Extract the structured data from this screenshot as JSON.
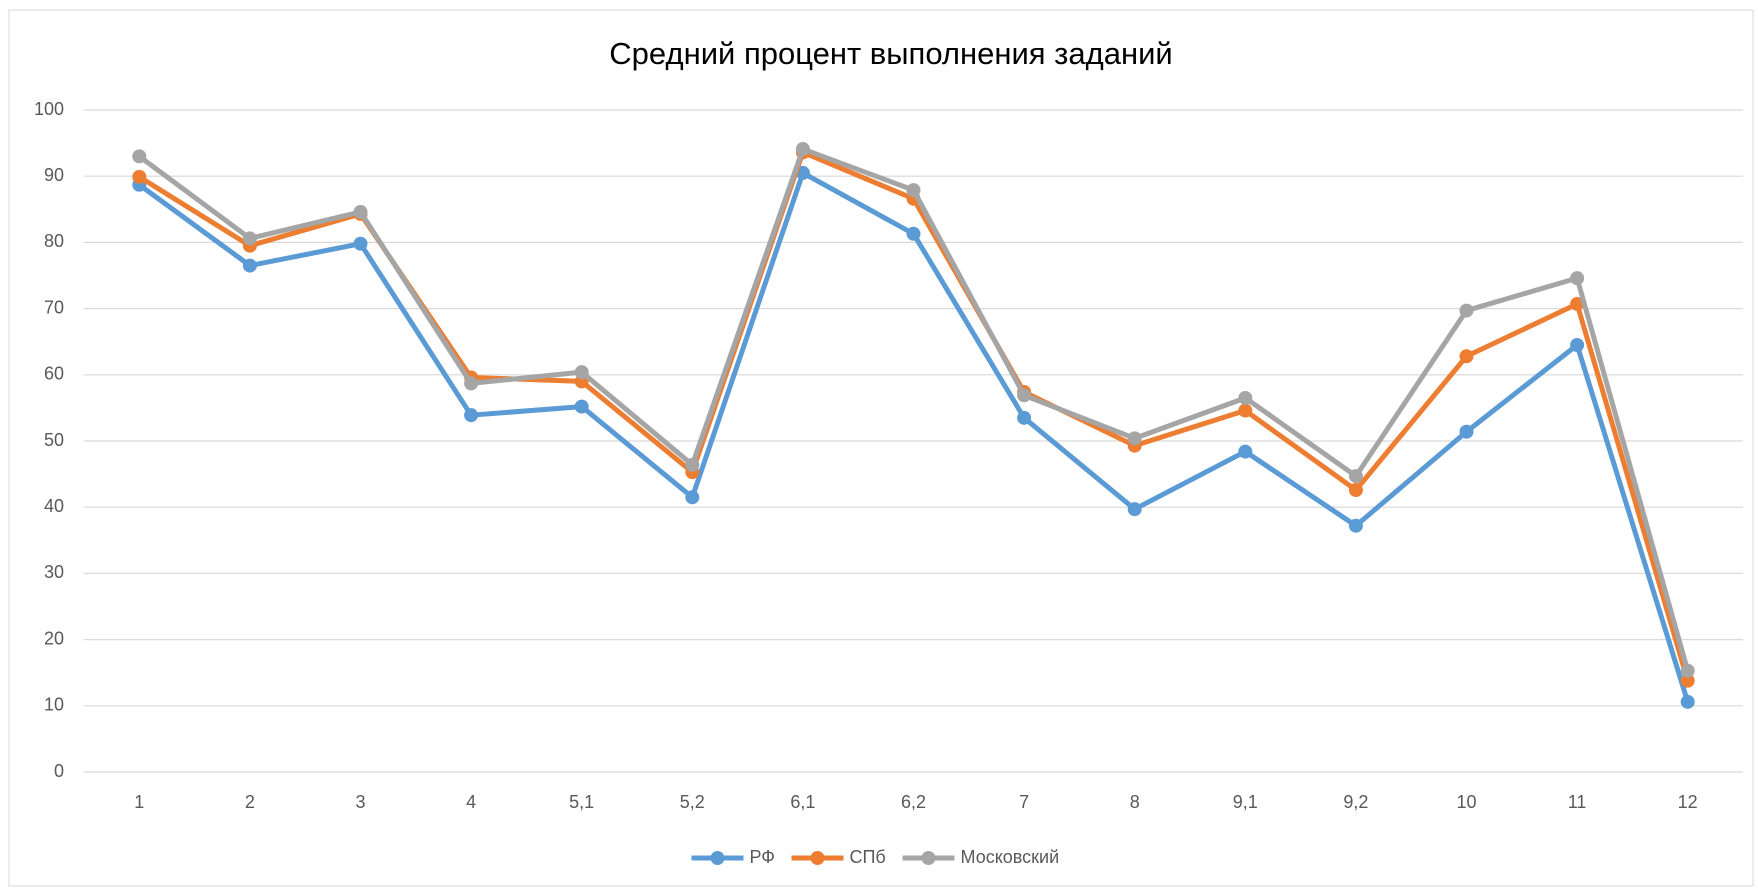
{
  "chart_data": {
    "type": "line",
    "title": "Средний процент выполнения заданий",
    "categories": [
      "1",
      "2",
      "3",
      "4",
      "5,1",
      "5,2",
      "6,1",
      "6,2",
      "7",
      "8",
      "9,1",
      "9,2",
      "10",
      "11",
      "12"
    ],
    "series": [
      {
        "name": "РФ",
        "color": "#5b9bd5",
        "values": [
          88.7,
          76.5,
          79.8,
          53.9,
          55.2,
          41.5,
          90.5,
          81.3,
          53.5,
          39.7,
          48.4,
          37.2,
          51.4,
          64.5,
          10.6
        ]
      },
      {
        "name": "СПб",
        "color": "#ed7d31",
        "values": [
          89.9,
          79.5,
          84.3,
          59.6,
          59.0,
          45.3,
          93.6,
          86.6,
          57.4,
          49.3,
          54.6,
          42.6,
          62.8,
          70.7,
          13.8
        ]
      },
      {
        "name": "Московский",
        "color": "#a5a5a5",
        "values": [
          93.0,
          80.6,
          84.6,
          58.7,
          60.4,
          46.4,
          94.1,
          87.9,
          56.9,
          50.4,
          56.5,
          44.7,
          69.7,
          74.6,
          15.3
        ]
      }
    ],
    "ylim": [
      0,
      100
    ],
    "yticks": [
      0,
      10,
      20,
      30,
      40,
      50,
      60,
      70,
      80,
      90,
      100
    ],
    "grid": true,
    "legend": "bottom"
  }
}
